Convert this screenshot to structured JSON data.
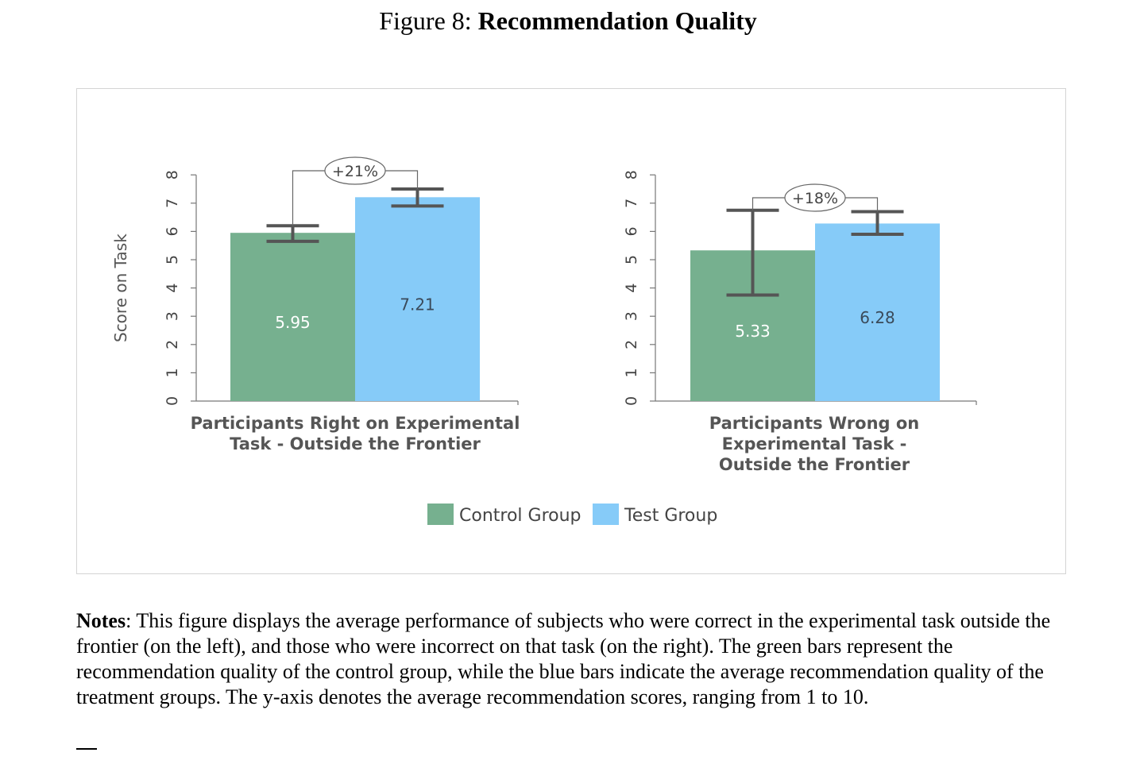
{
  "figure": {
    "title_prefix": "Figure 8:",
    "title_bold": "Recommendation Quality"
  },
  "chart_data": {
    "type": "bar",
    "ylabel": "Score on Task",
    "ylim": [
      0,
      8
    ],
    "yticks": [
      0,
      1,
      2,
      3,
      4,
      5,
      6,
      7,
      8
    ],
    "panels": [
      {
        "category_lines": [
          "Participants Right on Experimental",
          "Task - Outside the Frontier"
        ],
        "series": [
          {
            "name": "Control Group",
            "value": 5.95,
            "label": "5.95",
            "err_low": 5.65,
            "err_high": 6.2
          },
          {
            "name": "Test Group",
            "value": 7.21,
            "label": "7.21",
            "err_low": 6.9,
            "err_high": 7.5
          }
        ],
        "annotation": "+21%"
      },
      {
        "category_lines": [
          "Participants Wrong on",
          "Experimental Task -",
          "Outside the Frontier"
        ],
        "series": [
          {
            "name": "Control Group",
            "value": 5.33,
            "label": "5.33",
            "err_low": 3.75,
            "err_high": 6.75
          },
          {
            "name": "Test Group",
            "value": 6.28,
            "label": "6.28",
            "err_low": 5.9,
            "err_high": 6.7
          }
        ],
        "annotation": "+18%"
      }
    ],
    "legend": [
      {
        "name": "Control Group",
        "color": "#76b08f"
      },
      {
        "name": "Test Group",
        "color": "#86cbf8"
      }
    ],
    "colors": {
      "control": "#76b08f",
      "test": "#86cbf8",
      "error_bar": "#555555",
      "axis": "#777777"
    }
  },
  "notes": {
    "label": "Notes",
    "text": ": This figure displays the average performance of subjects who were correct in the experimental task outside the frontier (on the left), and those who were incorrect on that task (on the right). The green bars represent the recommendation quality of the control group, while the blue bars indicate the average recommendation quality of the treatment groups. The y-axis denotes the average recommendation scores, ranging from 1 to 10."
  }
}
